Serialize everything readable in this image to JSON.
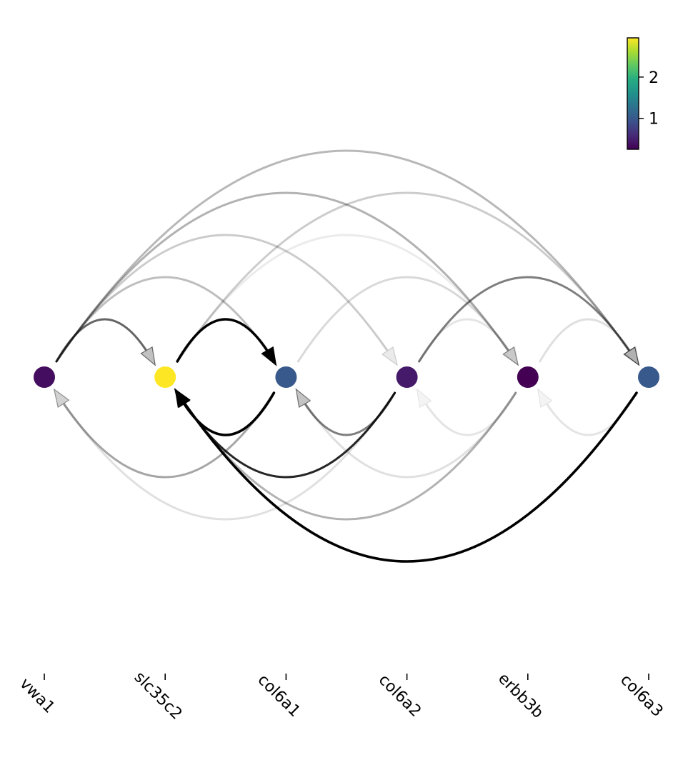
{
  "chart_data": {
    "type": "arc-diagram",
    "nodes": [
      {
        "name": "vwa1",
        "value": 0.35
      },
      {
        "name": "slc35c2",
        "value": 2.95
      },
      {
        "name": "col6a1",
        "value": 1.0
      },
      {
        "name": "col6a2",
        "value": 0.45
      },
      {
        "name": "erbb3b",
        "value": 0.25
      },
      {
        "name": "col6a3",
        "value": 1.0
      }
    ],
    "edges": [
      {
        "source": "vwa1",
        "target": "slc35c2",
        "weight": 0.6
      },
      {
        "source": "vwa1",
        "target": "col6a1",
        "weight": 0.25
      },
      {
        "source": "vwa1",
        "target": "col6a2",
        "weight": 0.2
      },
      {
        "source": "vwa1",
        "target": "erbb3b",
        "weight": 0.3
      },
      {
        "source": "vwa1",
        "target": "col6a3",
        "weight": 0.28
      },
      {
        "source": "slc35c2",
        "target": "col6a1",
        "weight": 1.0
      },
      {
        "source": "slc35c2",
        "target": "col6a3",
        "weight": 0.2
      },
      {
        "source": "slc35c2",
        "target": "erbb3b",
        "weight": 0.08
      },
      {
        "source": "col6a1",
        "target": "erbb3b",
        "weight": 0.15
      },
      {
        "source": "col6a1",
        "target": "slc35c2",
        "weight": 1.0
      },
      {
        "source": "col6a1",
        "target": "vwa1",
        "weight": 0.35
      },
      {
        "source": "col6a2",
        "target": "col6a1",
        "weight": 0.5
      },
      {
        "source": "col6a2",
        "target": "slc35c2",
        "weight": 0.85
      },
      {
        "source": "col6a2",
        "target": "vwa1",
        "weight": 0.12
      },
      {
        "source": "col6a2",
        "target": "col6a3",
        "weight": 0.5
      },
      {
        "source": "col6a2",
        "target": "erbb3b",
        "weight": 0.1
      },
      {
        "source": "erbb3b",
        "target": "col6a2",
        "weight": 0.1
      },
      {
        "source": "erbb3b",
        "target": "col6a1",
        "weight": 0.12
      },
      {
        "source": "erbb3b",
        "target": "slc35c2",
        "weight": 0.3
      },
      {
        "source": "erbb3b",
        "target": "col6a3",
        "weight": 0.12
      },
      {
        "source": "col6a3",
        "target": "erbb3b",
        "weight": 0.1
      },
      {
        "source": "col6a3",
        "target": "slc35c2",
        "weight": 1.0
      }
    ],
    "colorbar": {
      "colormap": "viridis",
      "range": [
        0.25,
        2.95
      ],
      "ticks": [
        "1",
        "2"
      ],
      "tick_values": [
        1,
        2
      ]
    }
  }
}
